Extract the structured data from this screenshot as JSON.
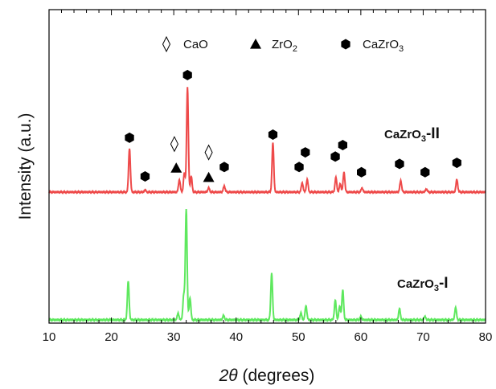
{
  "chart_data": {
    "type": "line",
    "title": "",
    "xlabel": "2θ (degrees)",
    "xlabel_parts": {
      "italic": "2θ",
      "rest": " (degrees)"
    },
    "ylabel": "Intensity (a.u.)",
    "xlim": [
      10,
      80
    ],
    "x_ticks": [
      10,
      20,
      30,
      40,
      50,
      60,
      70,
      80
    ],
    "y_ticks_shown": false,
    "grid": false,
    "legend": {
      "placement": "top-center",
      "items": [
        {
          "symbol": "diamond-open",
          "label": "CaO",
          "label_main": "CaO",
          "label_sub": ""
        },
        {
          "symbol": "triangle-filled",
          "label": "ZrO2",
          "label_main": "ZrO",
          "label_sub": "2"
        },
        {
          "symbol": "hexagon-filled",
          "label": "CaZrO3",
          "label_main": "CaZrO",
          "label_sub": "3"
        }
      ]
    },
    "series": [
      {
        "name": "CaZrO3-II",
        "label_main": "CaZrO",
        "label_sub": "3",
        "label_suffix": "-II",
        "color": "#ee4a4a",
        "peaks": [
          {
            "x": 22.9,
            "h": 0.42
          },
          {
            "x": 25.4,
            "h": 0.02
          },
          {
            "x": 30.9,
            "h": 0.12
          },
          {
            "x": 31.7,
            "h": 0.18
          },
          {
            "x": 32.2,
            "h": 1.0
          },
          {
            "x": 32.8,
            "h": 0.15
          },
          {
            "x": 35.6,
            "h": 0.04
          },
          {
            "x": 38.1,
            "h": 0.06
          },
          {
            "x": 45.9,
            "h": 0.47
          },
          {
            "x": 50.6,
            "h": 0.09
          },
          {
            "x": 51.4,
            "h": 0.12
          },
          {
            "x": 56.0,
            "h": 0.14
          },
          {
            "x": 56.7,
            "h": 0.08
          },
          {
            "x": 57.3,
            "h": 0.19
          },
          {
            "x": 60.2,
            "h": 0.04
          },
          {
            "x": 66.4,
            "h": 0.11
          },
          {
            "x": 70.5,
            "h": 0.03
          },
          {
            "x": 75.4,
            "h": 0.12
          }
        ],
        "markers": [
          {
            "x": 22.9,
            "symbol": "hexagon-filled",
            "y": 0.52
          },
          {
            "x": 25.4,
            "symbol": "hexagon-filled",
            "y": 0.15
          },
          {
            "x": 30.1,
            "symbol": "diamond-open",
            "y": 0.46
          },
          {
            "x": 30.4,
            "symbol": "triangle-filled",
            "y": 0.23
          },
          {
            "x": 32.2,
            "symbol": "hexagon-filled",
            "y": 1.12
          },
          {
            "x": 35.6,
            "symbol": "diamond-open",
            "y": 0.38
          },
          {
            "x": 35.6,
            "symbol": "triangle-filled",
            "y": 0.14
          },
          {
            "x": 38.1,
            "symbol": "hexagon-filled",
            "y": 0.24
          },
          {
            "x": 45.9,
            "symbol": "hexagon-filled",
            "y": 0.55
          },
          {
            "x": 50.1,
            "symbol": "hexagon-filled",
            "y": 0.24
          },
          {
            "x": 51.1,
            "symbol": "hexagon-filled",
            "y": 0.38
          },
          {
            "x": 55.9,
            "symbol": "hexagon-filled",
            "y": 0.34
          },
          {
            "x": 57.1,
            "symbol": "hexagon-filled",
            "y": 0.45
          },
          {
            "x": 60.1,
            "symbol": "hexagon-filled",
            "y": 0.19
          },
          {
            "x": 66.2,
            "symbol": "hexagon-filled",
            "y": 0.27
          },
          {
            "x": 70.3,
            "symbol": "hexagon-filled",
            "y": 0.19
          },
          {
            "x": 75.4,
            "symbol": "hexagon-filled",
            "y": 0.28
          }
        ]
      },
      {
        "name": "CaZrO3-I",
        "label_main": "CaZrO",
        "label_sub": "3",
        "label_suffix": "-I",
        "color": "#5ee85e",
        "peaks": [
          {
            "x": 22.7,
            "h": 0.35
          },
          {
            "x": 30.7,
            "h": 0.06
          },
          {
            "x": 31.6,
            "h": 0.22
          },
          {
            "x": 32.0,
            "h": 1.0
          },
          {
            "x": 32.6,
            "h": 0.2
          },
          {
            "x": 38.0,
            "h": 0.04
          },
          {
            "x": 45.7,
            "h": 0.42
          },
          {
            "x": 50.4,
            "h": 0.06
          },
          {
            "x": 51.2,
            "h": 0.13
          },
          {
            "x": 55.9,
            "h": 0.18
          },
          {
            "x": 56.6,
            "h": 0.12
          },
          {
            "x": 57.1,
            "h": 0.27
          },
          {
            "x": 60.0,
            "h": 0.03
          },
          {
            "x": 66.2,
            "h": 0.1
          },
          {
            "x": 70.3,
            "h": 0.03
          },
          {
            "x": 75.2,
            "h": 0.11
          }
        ]
      }
    ]
  }
}
